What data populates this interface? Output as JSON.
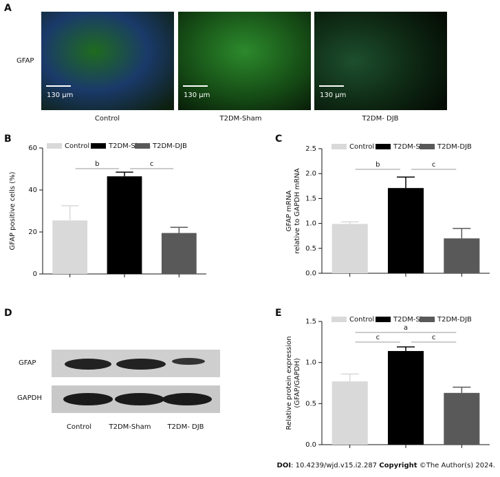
{
  "panel_a": {
    "letter": "A",
    "row_label": "GFAP",
    "scale_bar": "130 μm",
    "captions": [
      "Control",
      "T2DM-Sham",
      "T2DM- DJB"
    ]
  },
  "chart_data": [
    {
      "type": "bar",
      "letter": "B",
      "ylabel": [
        "GFAP positive cells (%)"
      ],
      "categories": [
        "Control",
        "T2DM-Sham",
        "T2DM-DJB"
      ],
      "colors": [
        "#d9d9d9",
        "#000000",
        "#595959"
      ],
      "values": [
        25.5,
        46.5,
        19.5
      ],
      "errors": [
        7,
        2,
        2.7
      ],
      "ylim": [
        0,
        60
      ],
      "yticks": [
        0,
        20,
        40,
        60
      ],
      "annotations": [
        {
          "text": "b",
          "between": [
            0,
            1
          ]
        },
        {
          "text": "c",
          "between": [
            1,
            2
          ]
        }
      ]
    },
    {
      "type": "bar",
      "letter": "C",
      "ylabel": [
        "GFAP mRNA",
        "relative to GAPDH mRNA"
      ],
      "categories": [
        "Control",
        "T2DM-Sham",
        "T2DM-DJB"
      ],
      "colors": [
        "#d9d9d9",
        "#000000",
        "#595959"
      ],
      "values": [
        0.99,
        1.71,
        0.7
      ],
      "errors": [
        0.04,
        0.22,
        0.2
      ],
      "ylim": [
        0,
        2.5
      ],
      "yticks": [
        {
          "value": 0,
          "label": "0.0"
        },
        0.5,
        {
          "value": 1,
          "label": "1.0"
        },
        1.5,
        {
          "value": 2,
          "label": "2.0"
        },
        2.5
      ],
      "annotations": [
        {
          "text": "b",
          "between": [
            0,
            1
          ]
        },
        {
          "text": "c",
          "between": [
            1,
            2
          ]
        }
      ]
    },
    {
      "type": "bar",
      "letter": "E",
      "ylabel": [
        "Relative protein expression",
        "(GFAP/GAPDH)"
      ],
      "categories": [
        "Control",
        "T2DM-Sham",
        "T2DM-DJB"
      ],
      "colors": [
        "#d9d9d9",
        "#000000",
        "#595959"
      ],
      "values": [
        0.77,
        1.14,
        0.63
      ],
      "errors": [
        0.09,
        0.05,
        0.07
      ],
      "ylim": [
        0,
        1.5
      ],
      "yticks": [
        {
          "value": 0,
          "label": "0.0"
        },
        0.5,
        {
          "value": 1,
          "label": "1.0"
        },
        1.5
      ],
      "annotations": [
        {
          "text": "a",
          "between": [
            0,
            2
          ]
        },
        {
          "text": "c",
          "between": [
            0,
            1
          ]
        },
        {
          "text": "c",
          "between": [
            1,
            2
          ]
        }
      ]
    }
  ],
  "panel_d": {
    "letter": "D",
    "rows": [
      "GFAP",
      "GAPDH"
    ],
    "lanes": [
      "Control",
      "T2DM-Sham",
      "T2DM- DJB"
    ]
  },
  "footer": {
    "doi_label": "DOI",
    "doi": ": 10.4239/wjd.v15.i2.287 ",
    "copyright_label": "Copyright",
    "copyright": " ©The Author(s) 2024."
  }
}
